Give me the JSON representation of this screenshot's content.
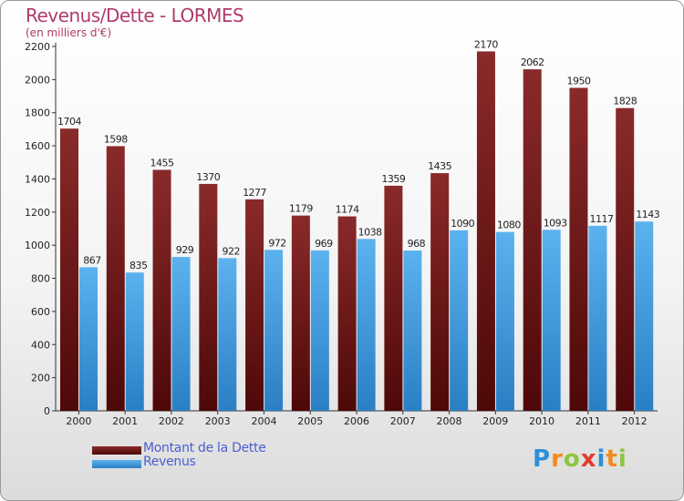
{
  "header": {
    "title": "Revenus/Dette - LORMES",
    "subtitle": "(en milliers d'€)"
  },
  "legend": {
    "debt_label": "Montant de la Dette",
    "revenue_label": "Revenus"
  },
  "logo": {
    "text": "Proxiti",
    "letters": [
      "P",
      "r",
      "o",
      "x",
      "i",
      "t",
      "i"
    ],
    "colors": [
      "#2f8fd6",
      "#f28b1e",
      "#8cc63f",
      "#e63a2f",
      "#2f8fd6",
      "#f28b1e",
      "#8cc63f"
    ]
  },
  "colors": {
    "debt": "#7a2020",
    "debt_dark": "#4e0a0a",
    "revenue": "#4ea6e6",
    "revenue_dark": "#2a7fc4",
    "title": "#b03a6b"
  },
  "chart_data": {
    "type": "bar",
    "title": "Revenus/Dette - LORMES",
    "subtitle": "(en milliers d'€)",
    "categories": [
      "2000",
      "2001",
      "2002",
      "2003",
      "2004",
      "2005",
      "2006",
      "2007",
      "2008",
      "2009",
      "2010",
      "2011",
      "2012"
    ],
    "series": [
      {
        "name": "Montant de la Dette",
        "values": [
          1704,
          1598,
          1455,
          1370,
          1277,
          1179,
          1174,
          1359,
          1435,
          2170,
          2062,
          1950,
          1828
        ]
      },
      {
        "name": "Revenus",
        "values": [
          867,
          835,
          929,
          922,
          972,
          969,
          1038,
          968,
          1090,
          1080,
          1093,
          1117,
          1143
        ]
      }
    ],
    "ylim": [
      0,
      2200
    ],
    "yticks": [
      0,
      200,
      400,
      600,
      800,
      1000,
      1200,
      1400,
      1600,
      1800,
      2000,
      2200
    ],
    "grid": false,
    "legend_position": "bottom-left"
  }
}
